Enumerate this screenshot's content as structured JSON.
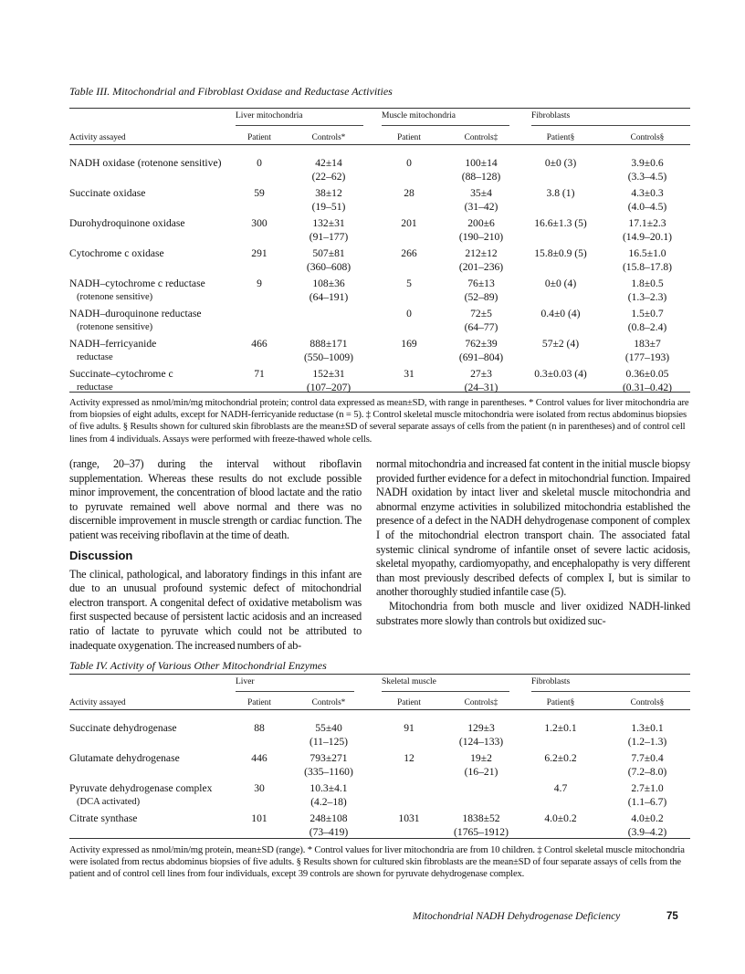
{
  "table3": {
    "caption": "Table III. Mitochondrial and Fibroblast Oxidase and Reductase Activities",
    "groups": [
      "Liver mitochondria",
      "Muscle mitochondria",
      "Fibroblasts"
    ],
    "columns": [
      "Activity assayed",
      "Patient",
      "Controls*",
      "Patient",
      "Controls‡",
      "Patient§",
      "Controls§"
    ],
    "rows": [
      {
        "label": [
          "NADH oxidase (rotenone sensitive)",
          ""
        ],
        "cells": [
          [
            "0",
            ""
          ],
          [
            "42±14",
            "(22–62)"
          ],
          [
            "0",
            ""
          ],
          [
            "100±14",
            "(88–128)"
          ],
          [
            "0±0 (3)",
            ""
          ],
          [
            "3.9±0.6",
            "(3.3–4.5)"
          ]
        ]
      },
      {
        "label": [
          "Succinate oxidase",
          ""
        ],
        "cells": [
          [
            "59",
            ""
          ],
          [
            "38±12",
            "(19–51)"
          ],
          [
            "28",
            ""
          ],
          [
            "35±4",
            "(31–42)"
          ],
          [
            "3.8 (1)",
            ""
          ],
          [
            "4.3±0.3",
            "(4.0–4.5)"
          ]
        ]
      },
      {
        "label": [
          "Durohydroquinone oxidase",
          ""
        ],
        "cells": [
          [
            "300",
            ""
          ],
          [
            "132±31",
            "(91–177)"
          ],
          [
            "201",
            ""
          ],
          [
            "200±6",
            "(190–210)"
          ],
          [
            "16.6±1.3 (5)",
            ""
          ],
          [
            "17.1±2.3",
            "(14.9–20.1)"
          ]
        ]
      },
      {
        "label": [
          "Cytochrome c oxidase",
          ""
        ],
        "cells": [
          [
            "291",
            ""
          ],
          [
            "507±81",
            "(360–608)"
          ],
          [
            "266",
            ""
          ],
          [
            "212±12",
            "(201–236)"
          ],
          [
            "15.8±0.9 (5)",
            ""
          ],
          [
            "16.5±1.0",
            "(15.8–17.8)"
          ]
        ]
      },
      {
        "label": [
          "NADH–cytochrome c reductase",
          "(rotenone sensitive)"
        ],
        "cells": [
          [
            "9",
            ""
          ],
          [
            "108±36",
            "(64–191)"
          ],
          [
            "5",
            ""
          ],
          [
            "76±13",
            "(52–89)"
          ],
          [
            "0±0 (4)",
            ""
          ],
          [
            "1.8±0.5",
            "(1.3–2.3)"
          ]
        ]
      },
      {
        "label": [
          "NADH–duroquinone reductase",
          "(rotenone sensitive)"
        ],
        "cells": [
          [
            "",
            ""
          ],
          [
            "",
            ""
          ],
          [
            "0",
            ""
          ],
          [
            "72±5",
            "(64–77)"
          ],
          [
            "0.4±0 (4)",
            ""
          ],
          [
            "1.5±0.7",
            "(0.8–2.4)"
          ]
        ]
      },
      {
        "label": [
          "NADH–ferricyanide",
          "reductase"
        ],
        "cells": [
          [
            "466",
            ""
          ],
          [
            "888±171",
            "(550–1009)"
          ],
          [
            "169",
            ""
          ],
          [
            "762±39",
            "(691–804)"
          ],
          [
            "57±2 (4)",
            ""
          ],
          [
            "183±7",
            "(177–193)"
          ]
        ]
      },
      {
        "label": [
          "Succinate–cytochrome c",
          "reductase"
        ],
        "cells": [
          [
            "71",
            ""
          ],
          [
            "152±31",
            "(107–207)"
          ],
          [
            "31",
            ""
          ],
          [
            "27±3",
            "(24–31)"
          ],
          [
            "0.3±0.03 (4)",
            ""
          ],
          [
            "0.36±0.05",
            "(0.31–0.42)"
          ]
        ]
      }
    ],
    "footnote": "Activity expressed as nmol/min/mg mitochondrial protein; control data expressed as mean±SD, with range in parentheses.  * Control values for liver mitochondria are from biopsies of eight adults, except for NADH-ferricyanide reductase (n = 5).  ‡ Control skeletal muscle mitochondria were isolated from rectus abdominus biopsies of five adults.  § Results shown for cultured skin fibroblasts are the mean±SD of several separate assays of cells from the patient (n in parentheses) and of control cell lines from 4 individuals. Assays were performed with freeze-thawed whole cells."
  },
  "body": {
    "left_para1": "(range, 20–37) during the interval without riboflavin supplementation. Whereas these results do not exclude possible minor improvement, the concentration of blood lactate and the ratio to pyruvate remained well above normal and there was no discernible improvement in muscle strength or cardiac function. The patient was receiving riboflavin at the time of death.",
    "discussion_heading": "Discussion",
    "left_para2": "The clinical, pathological, and laboratory findings in this infant are due to an unusual profound systemic defect of mitochondrial electron transport. A congenital defect of oxidative metabolism was first suspected because of persistent lactic acidosis and an increased ratio of lactate to pyruvate which could not be attributed to inadequate oxygenation. The increased numbers of ab-",
    "right_para1": "normal mitochondria and increased fat content in the initial muscle biopsy provided further evidence for a defect in mitochondrial function. Impaired NADH oxidation by intact liver and skeletal muscle mitochondria and abnormal enzyme activities in solubilized mitochondria established the presence of a defect in the NADH dehydrogenase component of complex I of the mitochondrial electron transport chain. The associated fatal systemic clinical syndrome of infantile onset of severe lactic acidosis, skeletal myopathy, cardiomyopathy, and encephalopathy is very different than most previously described defects of complex I, but is similar to another thoroughly studied infantile case (5).",
    "right_para2": "Mitochondria from both muscle and liver oxidized NADH-linked substrates more slowly than controls but oxidized suc-"
  },
  "table4": {
    "caption": "Table IV. Activity of Various Other Mitochondrial Enzymes",
    "groups": [
      "Liver",
      "Skeletal muscle",
      "Fibroblasts"
    ],
    "columns": [
      "Activity assayed",
      "Patient",
      "Controls*",
      "Patient",
      "Controls‡",
      "Patient§",
      "Controls§"
    ],
    "rows": [
      {
        "label": [
          "Succinate dehydrogenase",
          ""
        ],
        "cells": [
          [
            "88",
            ""
          ],
          [
            "55±40",
            "(11–125)"
          ],
          [
            "91",
            ""
          ],
          [
            "129±3",
            "(124–133)"
          ],
          [
            "1.2±0.1",
            ""
          ],
          [
            "1.3±0.1",
            "(1.2–1.3)"
          ]
        ]
      },
      {
        "label": [
          "Glutamate dehydrogenase",
          ""
        ],
        "cells": [
          [
            "446",
            ""
          ],
          [
            "793±271",
            "(335–1160)"
          ],
          [
            "12",
            ""
          ],
          [
            "19±2",
            "(16–21)"
          ],
          [
            "6.2±0.2",
            ""
          ],
          [
            "7.7±0.4",
            "(7.2–8.0)"
          ]
        ]
      },
      {
        "label": [
          "Pyruvate dehydrogenase complex",
          "(DCA activated)"
        ],
        "cells": [
          [
            "30",
            ""
          ],
          [
            "10.3±4.1",
            "(4.2–18)"
          ],
          [
            "",
            ""
          ],
          [
            "",
            ""
          ],
          [
            "4.7",
            ""
          ],
          [
            "2.7±1.0",
            "(1.1–6.7)"
          ]
        ]
      },
      {
        "label": [
          "Citrate synthase",
          ""
        ],
        "cells": [
          [
            "101",
            ""
          ],
          [
            "248±108",
            "(73–419)"
          ],
          [
            "1031",
            ""
          ],
          [
            "1838±52",
            "(1765–1912)"
          ],
          [
            "4.0±0.2",
            ""
          ],
          [
            "4.0±0.2",
            "(3.9–4.2)"
          ]
        ]
      }
    ],
    "footnote": "Activity expressed as nmol/min/mg protein, mean±SD (range).  * Control values for liver mitochondria are from 10 children.  ‡ Control skeletal muscle mitochondria were isolated from rectus abdominus biopsies of five adults.  § Results shown for cultured skin fibroblasts are the mean±SD of four separate assays of cells from the patient and of control cell lines from four individuals, except 39 controls are shown for pyruvate dehydrogenase complex."
  },
  "footer": {
    "running_title": "Mitochondrial NADH Dehydrogenase Deficiency",
    "page_number": "75"
  }
}
